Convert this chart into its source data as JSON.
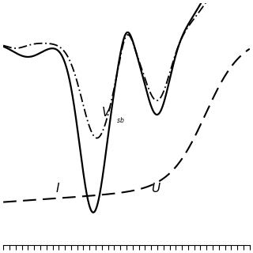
{
  "background_color": "#ffffff",
  "xlim": [
    0,
    1
  ],
  "ylim": [
    -1.05,
    0.35
  ],
  "solid_color": "#000000",
  "dashdot_color": "#000000",
  "dashed_color": "#000000",
  "lw_solid": 1.6,
  "lw_dashdot": 1.3,
  "lw_dashed": 1.5
}
